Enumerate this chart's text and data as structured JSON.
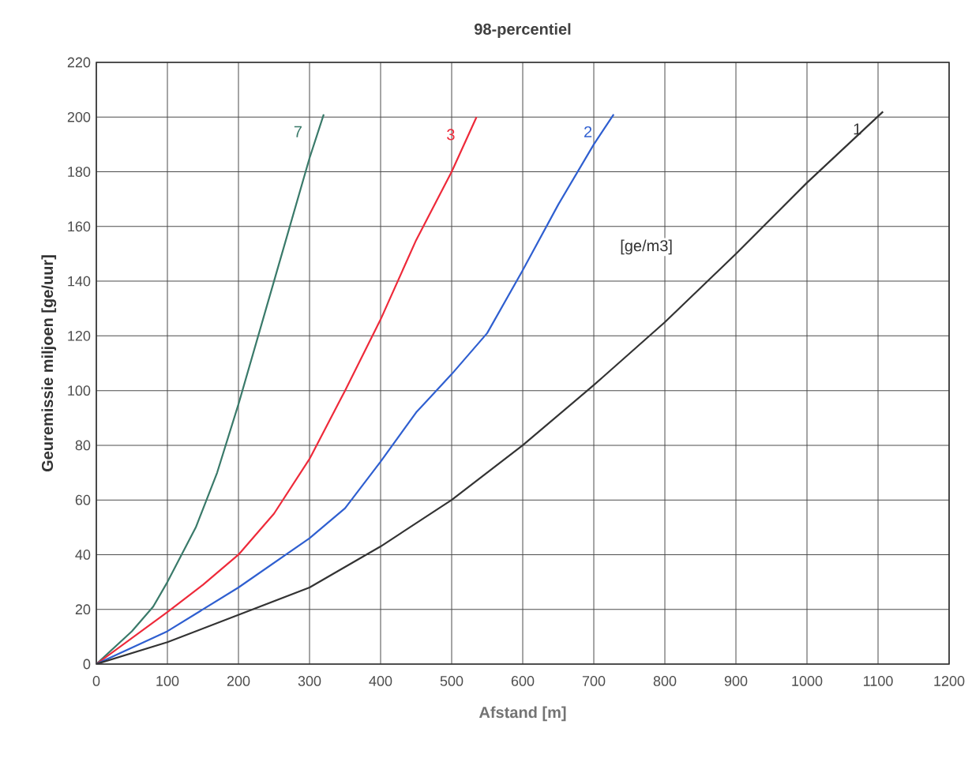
{
  "chart_data": {
    "type": "line",
    "title": "98-percentiel",
    "xlabel": "Afstand [m]",
    "ylabel": "Geuremissie miljoen [ge/uur]",
    "annotations": [
      "[ge/m3]"
    ],
    "xlim": [
      0,
      1200
    ],
    "ylim": [
      0,
      220
    ],
    "xticks": [
      0,
      100,
      200,
      300,
      400,
      500,
      600,
      700,
      800,
      900,
      1000,
      1100,
      1200
    ],
    "yticks": [
      0,
      20,
      40,
      60,
      80,
      100,
      120,
      140,
      160,
      180,
      200,
      220
    ],
    "grid": true,
    "legend": false,
    "marker": "none",
    "line_style": "solid",
    "series": [
      {
        "name": "7",
        "color": "#3a7a6a",
        "x": [
          0,
          50,
          80,
          100,
          140,
          170,
          200,
          250,
          300,
          320
        ],
        "values": [
          0,
          12,
          21,
          30,
          50,
          70,
          95,
          140,
          185,
          201
        ]
      },
      {
        "name": "3",
        "color": "#ee2a3a",
        "x": [
          0,
          100,
          150,
          200,
          250,
          300,
          350,
          400,
          450,
          500,
          535
        ],
        "values": [
          0,
          19,
          29,
          40,
          55,
          75,
          100,
          126,
          155,
          180,
          200
        ]
      },
      {
        "name": "2",
        "color": "#2f5fd0",
        "x": [
          0,
          100,
          200,
          300,
          350,
          400,
          450,
          500,
          550,
          600,
          650,
          700,
          728
        ],
        "values": [
          0,
          12,
          28,
          46,
          57,
          74,
          92,
          106,
          121,
          144,
          168,
          190,
          201
        ]
      },
      {
        "name": "1",
        "color": "#333333",
        "x": [
          0,
          100,
          200,
          300,
          400,
          500,
          600,
          700,
          800,
          900,
          1000,
          1107
        ],
        "values": [
          0,
          8,
          18,
          28,
          43,
          60,
          80,
          102,
          125,
          150,
          176,
          202
        ]
      }
    ]
  }
}
